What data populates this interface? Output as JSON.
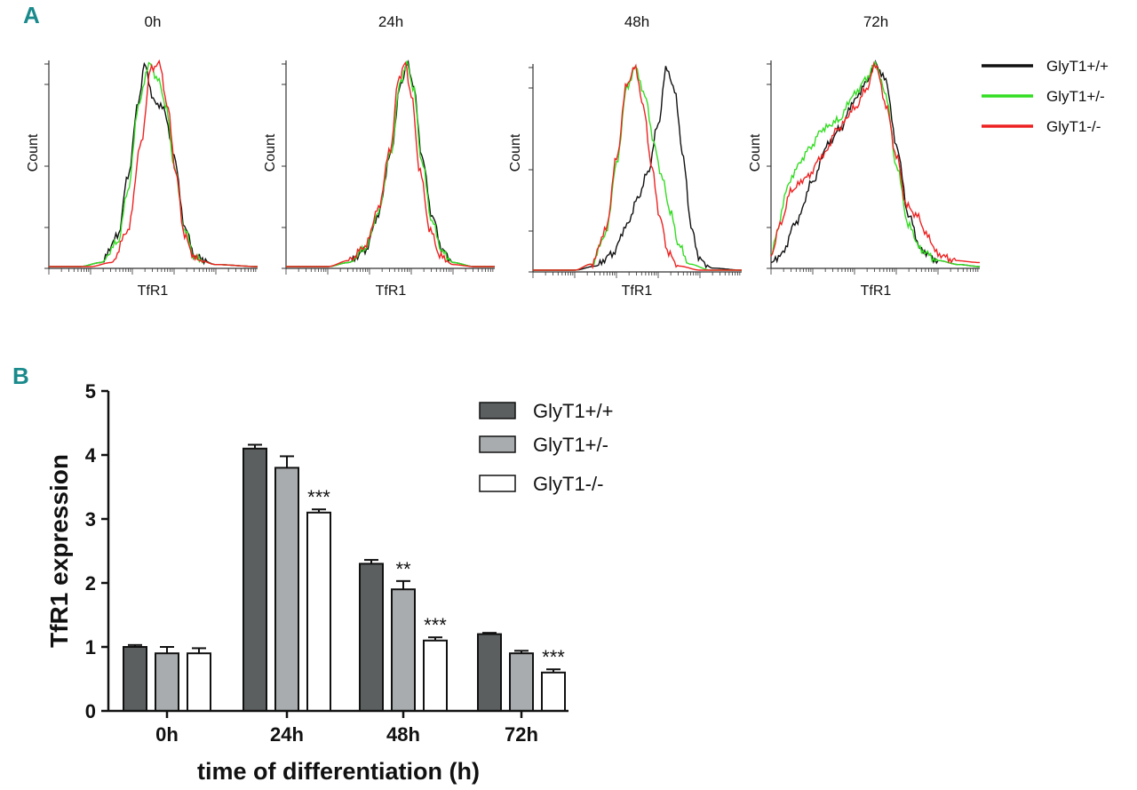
{
  "panel_labels": {
    "a": "A",
    "b": "B"
  },
  "colors": {
    "wt": "#111111",
    "het": "#33dd22",
    "ko": "#ee2222",
    "bar_wt": "#5b5f60",
    "bar_het": "#a9acae",
    "bar_ko": "#ffffff"
  },
  "legend_a": [
    {
      "label": "GlyT1+/+",
      "color": "#111111"
    },
    {
      "label": "GlyT1+/-",
      "color": "#33dd22"
    },
    {
      "label": "GlyT1-/-",
      "color": "#ee2222"
    }
  ],
  "chart_data": [
    {
      "type": "line",
      "title": "0h",
      "xlabel": "TfR1",
      "ylabel": "Count",
      "xscale": "log",
      "series": [
        {
          "name": "GlyT1+/+",
          "x": [
            0,
            0.15,
            0.25,
            0.33,
            0.38,
            0.43,
            0.46,
            0.5,
            0.55,
            0.6,
            0.65,
            0.7,
            0.8,
            1
          ],
          "y": [
            0,
            0,
            0.02,
            0.15,
            0.45,
            0.82,
            1.0,
            0.82,
            0.78,
            0.55,
            0.2,
            0.05,
            0.01,
            0
          ]
        },
        {
          "name": "GlyT1+/-",
          "x": [
            0,
            0.15,
            0.25,
            0.33,
            0.38,
            0.43,
            0.48,
            0.52,
            0.56,
            0.6,
            0.65,
            0.7,
            0.8,
            1
          ],
          "y": [
            0,
            0,
            0.02,
            0.12,
            0.38,
            0.8,
            1.0,
            0.93,
            0.8,
            0.5,
            0.18,
            0.04,
            0.01,
            0
          ]
        },
        {
          "name": "GlyT1-/-",
          "x": [
            0,
            0.2,
            0.3,
            0.38,
            0.44,
            0.49,
            0.53,
            0.57,
            0.61,
            0.65,
            0.7,
            0.8,
            1
          ],
          "y": [
            0,
            0,
            0.02,
            0.18,
            0.6,
            0.98,
            1.0,
            0.78,
            0.45,
            0.15,
            0.04,
            0.01,
            0
          ]
        }
      ]
    },
    {
      "type": "line",
      "title": "24h",
      "xlabel": "TfR1",
      "ylabel": "Count",
      "xscale": "log",
      "series": [
        {
          "name": "GlyT1+/+",
          "x": [
            0,
            0.2,
            0.3,
            0.38,
            0.44,
            0.5,
            0.55,
            0.58,
            0.61,
            0.65,
            0.7,
            0.75,
            0.8,
            0.9,
            1
          ],
          "y": [
            0,
            0,
            0.02,
            0.08,
            0.25,
            0.55,
            0.9,
            1.0,
            0.9,
            0.55,
            0.25,
            0.08,
            0.02,
            0,
            0
          ]
        },
        {
          "name": "GlyT1+/-",
          "x": [
            0,
            0.2,
            0.3,
            0.38,
            0.44,
            0.5,
            0.55,
            0.58,
            0.61,
            0.65,
            0.7,
            0.75,
            0.8,
            0.9,
            1
          ],
          "y": [
            0,
            0,
            0.02,
            0.09,
            0.26,
            0.56,
            0.92,
            1.0,
            0.88,
            0.52,
            0.22,
            0.07,
            0.02,
            0,
            0
          ]
        },
        {
          "name": "GlyT1-/-",
          "x": [
            0,
            0.2,
            0.3,
            0.38,
            0.44,
            0.5,
            0.54,
            0.57,
            0.6,
            0.64,
            0.69,
            0.74,
            0.8,
            0.9,
            1
          ],
          "y": [
            0,
            0,
            0.03,
            0.1,
            0.28,
            0.58,
            0.93,
            1.0,
            0.85,
            0.48,
            0.18,
            0.05,
            0.01,
            0,
            0
          ]
        }
      ]
    },
    {
      "type": "line",
      "title": "48h",
      "xlabel": "TfR1",
      "ylabel": "Count",
      "xscale": "log",
      "series": [
        {
          "name": "GlyT1+/+",
          "x": [
            0,
            0.2,
            0.3,
            0.38,
            0.45,
            0.5,
            0.55,
            0.6,
            0.64,
            0.68,
            0.72,
            0.76,
            0.8,
            0.86,
            1
          ],
          "y": [
            0,
            0,
            0.02,
            0.08,
            0.22,
            0.35,
            0.48,
            0.72,
            1.0,
            0.88,
            0.55,
            0.2,
            0.05,
            0.01,
            0
          ]
        },
        {
          "name": "GlyT1+/-",
          "x": [
            0,
            0.2,
            0.28,
            0.35,
            0.4,
            0.45,
            0.49,
            0.54,
            0.58,
            0.62,
            0.66,
            0.7,
            0.75,
            0.85,
            1
          ],
          "y": [
            0,
            0,
            0.03,
            0.18,
            0.52,
            0.9,
            1.0,
            0.85,
            0.62,
            0.45,
            0.28,
            0.12,
            0.03,
            0,
            0
          ]
        },
        {
          "name": "GlyT1-/-",
          "x": [
            0,
            0.2,
            0.28,
            0.35,
            0.4,
            0.45,
            0.49,
            0.53,
            0.57,
            0.61,
            0.65,
            0.7,
            0.8,
            1
          ],
          "y": [
            0,
            0,
            0.03,
            0.2,
            0.55,
            0.92,
            1.0,
            0.8,
            0.5,
            0.25,
            0.08,
            0.02,
            0,
            0
          ]
        }
      ]
    },
    {
      "type": "line",
      "title": "72h",
      "xlabel": "TfR1",
      "ylabel": "Count",
      "xscale": "log",
      "series": [
        {
          "name": "GlyT1+/+",
          "x": [
            0,
            0.05,
            0.12,
            0.2,
            0.27,
            0.33,
            0.4,
            0.45,
            0.5,
            0.55,
            0.6,
            0.66,
            0.72,
            0.8,
            0.9,
            1
          ],
          "y": [
            0.02,
            0.06,
            0.22,
            0.42,
            0.6,
            0.68,
            0.82,
            0.9,
            1.0,
            0.92,
            0.6,
            0.25,
            0.08,
            0.03,
            0.01,
            0
          ]
        },
        {
          "name": "GlyT1+/-",
          "x": [
            0,
            0.03,
            0.08,
            0.13,
            0.18,
            0.25,
            0.32,
            0.4,
            0.45,
            0.5,
            0.55,
            0.6,
            0.66,
            0.72,
            0.8,
            0.9,
            1
          ],
          "y": [
            0.05,
            0.18,
            0.4,
            0.5,
            0.58,
            0.68,
            0.72,
            0.85,
            0.92,
            1.0,
            0.85,
            0.5,
            0.2,
            0.08,
            0.03,
            0.01,
            0
          ]
        },
        {
          "name": "GlyT1-/-",
          "x": [
            0,
            0.04,
            0.1,
            0.17,
            0.25,
            0.32,
            0.4,
            0.46,
            0.5,
            0.55,
            0.6,
            0.65,
            0.7,
            0.75,
            0.8,
            0.88,
            1
          ],
          "y": [
            0.05,
            0.2,
            0.38,
            0.44,
            0.55,
            0.68,
            0.78,
            0.88,
            1.0,
            0.8,
            0.55,
            0.3,
            0.25,
            0.15,
            0.06,
            0.03,
            0.02
          ]
        }
      ]
    },
    {
      "type": "bar",
      "title": "",
      "categories": [
        "0h",
        "24h",
        "48h",
        "72h"
      ],
      "series": [
        {
          "name": "GlyT1+/+",
          "values": [
            1.0,
            4.1,
            2.3,
            1.2
          ],
          "errors": [
            0.03,
            0.06,
            0.06,
            0.02
          ]
        },
        {
          "name": "GlyT1+/-",
          "values": [
            0.9,
            3.8,
            1.9,
            0.9
          ],
          "errors": [
            0.1,
            0.18,
            0.13,
            0.04
          ]
        },
        {
          "name": "GlyT1-/-",
          "values": [
            0.9,
            3.1,
            1.1,
            0.6
          ],
          "errors": [
            0.08,
            0.05,
            0.05,
            0.05
          ]
        }
      ],
      "annotations": [
        {
          "category": "24h",
          "series": "GlyT1-/-",
          "text": "***"
        },
        {
          "category": "48h",
          "series": "GlyT1+/-",
          "text": "**"
        },
        {
          "category": "48h",
          "series": "GlyT1-/-",
          "text": "***"
        },
        {
          "category": "72h",
          "series": "GlyT1-/-",
          "text": "***"
        }
      ],
      "xlabel": "time of differentiation (h)",
      "ylabel": "TfR1 expression",
      "ylim": [
        0,
        5
      ],
      "yticks": [
        "0",
        "1",
        "2",
        "3",
        "4",
        "5"
      ],
      "legend_position": "top-right"
    }
  ]
}
